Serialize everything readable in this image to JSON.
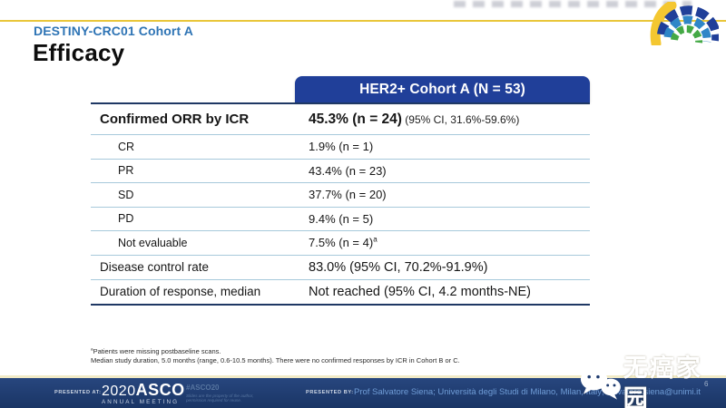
{
  "slide": {
    "kicker": "DESTINY-CRC01 Cohort A",
    "title": "Efficacy",
    "page_number": "6"
  },
  "table": {
    "header": "HER2+ Cohort A (N = 53)",
    "rows": [
      {
        "type": "orr",
        "label": "Confirmed ORR by ICR",
        "value": "45.3% (n = 24)",
        "value_note": "(95% CI, 31.6%-59.6%)"
      },
      {
        "type": "sub",
        "label": "CR",
        "value": "1.9% (n = 1)"
      },
      {
        "type": "sub",
        "label": "PR",
        "value": "43.4% (n = 23)"
      },
      {
        "type": "sub",
        "label": "SD",
        "value": "37.7% (n = 20)"
      },
      {
        "type": "sub",
        "label": "PD",
        "value": "9.4% (n = 5)"
      },
      {
        "type": "sub",
        "label": "Not evaluable",
        "value": "7.5% (n = 4)",
        "value_sup": "a"
      },
      {
        "type": "summary",
        "label": "Disease control rate",
        "value": "83.0% (95% CI, 70.2%-91.9%)"
      },
      {
        "type": "summary",
        "label": "Duration of response, median",
        "value": "Not reached (95% CI, 4.2 months-NE)"
      }
    ]
  },
  "footnotes": [
    {
      "sup": "a",
      "text": "Patients were missing postbaseline scans."
    },
    {
      "sup": "",
      "text": "Median study duration, 5.0 months (range, 0.6-10.5 months). There were no confirmed responses by ICR in Cohort B or C."
    }
  ],
  "footer": {
    "presented_at_label": "PRESENTED AT:",
    "meeting_year": "2020",
    "meeting_name": "ASCO",
    "meeting_sub": "ANNUAL MEETING",
    "hashtag": "#ASCO20",
    "rights_line1": "Slides are the property of the author,",
    "rights_line2": "permission required for reuse.",
    "presented_by_label": "PRESENTED BY:",
    "presenter": "Prof Salvatore Siena; Università degli Studi di Milano, Milan, Italy; salvatore.siena@unimi.it"
  },
  "watermark": {
    "text": "无癌家园"
  },
  "logo": {
    "name": "asco-2020-arc-logo"
  },
  "colors": {
    "header_bg": "#203F99",
    "navy_rule": "#1F3864",
    "light_rule": "#A7C9DB",
    "footer_bg": "#1D3A6E",
    "gold_line": "#E9C63B",
    "kicker_blue": "#2E74B5"
  }
}
